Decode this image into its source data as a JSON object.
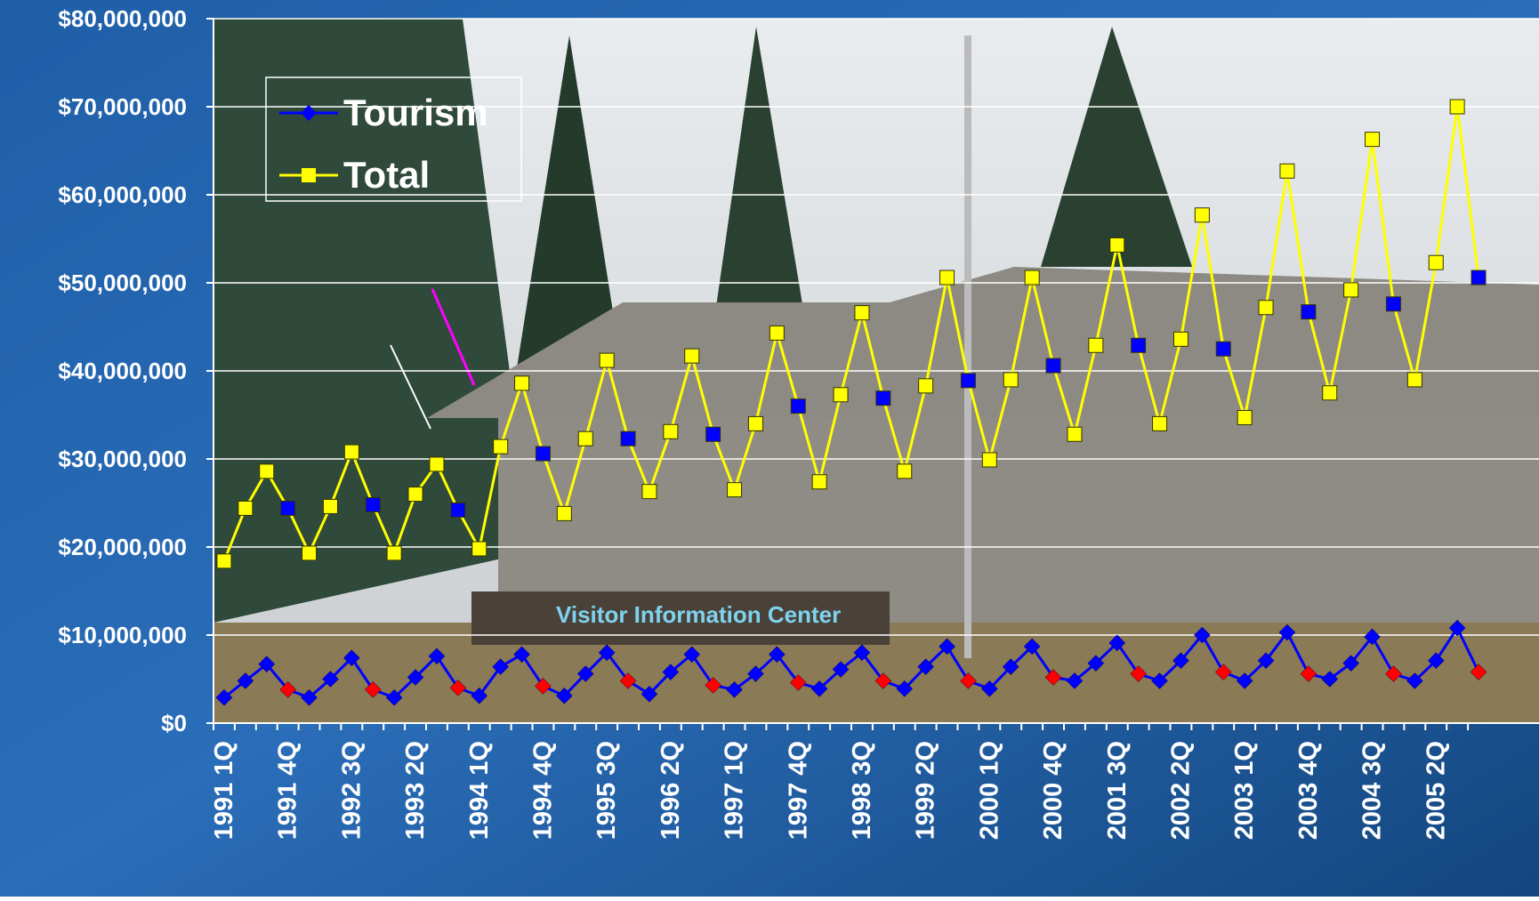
{
  "chart_data": {
    "type": "line",
    "categories": [
      "1991 1Q",
      null,
      null,
      "1991 4Q",
      null,
      null,
      "1992 3Q",
      null,
      null,
      "1993 2Q",
      null,
      null,
      "1994 1Q",
      null,
      null,
      "1994 4Q",
      null,
      null,
      "1995 3Q",
      null,
      null,
      "1996 2Q",
      null,
      null,
      "1997 1Q",
      null,
      null,
      "1997 4Q",
      null,
      null,
      "1998 3Q",
      null,
      null,
      "1999 2Q",
      null,
      null,
      "2000 1Q",
      null,
      null,
      "2000 4Q",
      null,
      null,
      "2001 3Q",
      null,
      null,
      "2002 2Q",
      null,
      null,
      "2003 1Q",
      null,
      null,
      "2003 4Q",
      null,
      null,
      "2004 3Q",
      null,
      null,
      "2005 2Q",
      null,
      null
    ],
    "series": [
      {
        "name": "Tourism",
        "color": "#0000ff",
        "marker": "diamond",
        "values": [
          2900000,
          4800000,
          6700000,
          3800000,
          2900000,
          5000000,
          7400000,
          3800000,
          2900000,
          5200000,
          7600000,
          4000000,
          3100000,
          6400000,
          7800000,
          4200000,
          3100000,
          5600000,
          8000000,
          4800000,
          3300000,
          5800000,
          7800000,
          4300000,
          3800000,
          5600000,
          7800000,
          4600000,
          3900000,
          6100000,
          8000000,
          4800000,
          3900000,
          6400000,
          8700000,
          4800000,
          3900000,
          6400000,
          8700000,
          5200000,
          4800000,
          6800000,
          9100000,
          5600000,
          4800000,
          7100000,
          10000000,
          5800000,
          4800000,
          7100000,
          10300000,
          5600000,
          5000000,
          6800000,
          9800000,
          5600000,
          4800000,
          7100000,
          10800000,
          5800000
        ],
        "marker_colors": [
          "#0000ff",
          "#0000ff",
          "#0000ff",
          "#ff0000",
          "#0000ff",
          "#0000ff",
          "#0000ff",
          "#ff0000",
          "#0000ff",
          "#0000ff",
          "#0000ff",
          "#ff0000",
          "#0000ff",
          "#0000ff",
          "#0000ff",
          "#ff0000",
          "#0000ff",
          "#0000ff",
          "#0000ff",
          "#ff0000",
          "#0000ff",
          "#0000ff",
          "#0000ff",
          "#ff0000",
          "#0000ff",
          "#0000ff",
          "#0000ff",
          "#ff0000",
          "#0000ff",
          "#0000ff",
          "#0000ff",
          "#ff0000",
          "#0000ff",
          "#0000ff",
          "#0000ff",
          "#ff0000",
          "#0000ff",
          "#0000ff",
          "#0000ff",
          "#ff0000",
          "#0000ff",
          "#0000ff",
          "#0000ff",
          "#ff0000",
          "#0000ff",
          "#0000ff",
          "#0000ff",
          "#ff0000",
          "#0000ff",
          "#0000ff",
          "#0000ff",
          "#ff0000",
          "#0000ff",
          "#0000ff",
          "#0000ff",
          "#ff0000",
          "#0000ff",
          "#0000ff",
          "#0000ff",
          "#ff0000"
        ]
      },
      {
        "name": "Total",
        "color": "#ffff00",
        "marker": "square",
        "values": [
          18400000,
          24400000,
          28600000,
          24400000,
          19300000,
          24600000,
          30800000,
          24800000,
          19300000,
          26000000,
          29400000,
          24200000,
          19800000,
          31400000,
          38600000,
          30600000,
          23800000,
          32300000,
          41200000,
          32300000,
          26300000,
          33100000,
          41700000,
          32800000,
          26500000,
          34000000,
          44300000,
          36000000,
          27400000,
          37300000,
          46600000,
          36900000,
          28600000,
          38300000,
          50600000,
          38900000,
          29900000,
          39000000,
          50600000,
          40600000,
          32800000,
          42900000,
          54300000,
          42900000,
          34000000,
          43600000,
          57700000,
          42500000,
          34700000,
          47200000,
          62700000,
          46700000,
          37500000,
          49200000,
          66300000,
          47600000,
          39000000,
          52300000,
          70000000,
          50600000
        ],
        "marker_colors": [
          "#ffff00",
          "#ffff00",
          "#ffff00",
          "#0000ff",
          "#ffff00",
          "#ffff00",
          "#ffff00",
          "#0000ff",
          "#ffff00",
          "#ffff00",
          "#ffff00",
          "#0000ff",
          "#ffff00",
          "#ffff00",
          "#ffff00",
          "#0000ff",
          "#ffff00",
          "#ffff00",
          "#ffff00",
          "#0000ff",
          "#ffff00",
          "#ffff00",
          "#ffff00",
          "#0000ff",
          "#ffff00",
          "#ffff00",
          "#ffff00",
          "#0000ff",
          "#ffff00",
          "#ffff00",
          "#ffff00",
          "#0000ff",
          "#ffff00",
          "#ffff00",
          "#ffff00",
          "#0000ff",
          "#ffff00",
          "#ffff00",
          "#ffff00",
          "#0000ff",
          "#ffff00",
          "#ffff00",
          "#ffff00",
          "#0000ff",
          "#ffff00",
          "#ffff00",
          "#ffff00",
          "#0000ff",
          "#ffff00",
          "#ffff00",
          "#ffff00",
          "#0000ff",
          "#ffff00",
          "#ffff00",
          "#ffff00",
          "#0000ff",
          "#ffff00",
          "#ffff00",
          "#ffff00",
          "#0000ff"
        ]
      }
    ],
    "ylim": [
      0,
      80000000
    ],
    "yticks": [
      {
        "value": 0,
        "label": "$0"
      },
      {
        "value": 10000000,
        "label": "$10,000,000"
      },
      {
        "value": 20000000,
        "label": "$20,000,000"
      },
      {
        "value": 30000000,
        "label": "$30,000,000"
      },
      {
        "value": 40000000,
        "label": "$40,000,000"
      },
      {
        "value": 50000000,
        "label": "$50,000,000"
      },
      {
        "value": 60000000,
        "label": "$60,000,000"
      },
      {
        "value": 70000000,
        "label": "$70,000,000"
      },
      {
        "value": 80000000,
        "label": "$80,000,000"
      }
    ],
    "grid": true,
    "legend": "top-left"
  }
}
